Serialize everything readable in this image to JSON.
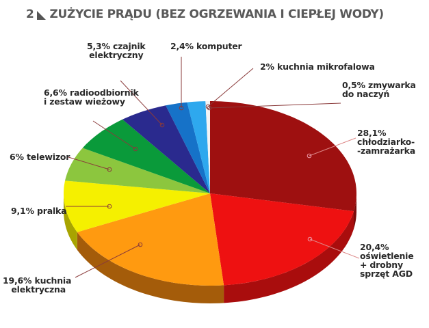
{
  "header": {
    "figure_number": "2",
    "title": "ZUŻYCIE PRĄDU (BEZ OGRZEWANIA I CIEPŁEJ WODY)"
  },
  "chart_data": {
    "type": "pie",
    "style": "3d",
    "title": "ZUŻYCIE PRĄDU (BEZ OGRZEWANIA I CIEPŁEJ WODY)",
    "unit": "%",
    "start_angle": "12 o'clock, clockwise",
    "categories": [
      "chłodziarko-zamrażarka",
      "oświetlenie + drobny sprzęt AGD",
      "kuchnia elektryczna",
      "pralka",
      "telewizor",
      "radioodbiornik i zestaw wieżowy",
      "czajnik elektryczny",
      "komputer",
      "kuchnia mikrofalowa",
      "zmywarka do naczyń"
    ],
    "values": [
      28.1,
      20.4,
      19.6,
      9.1,
      6.0,
      6.6,
      5.3,
      2.4,
      2.0,
      0.5
    ],
    "colors": [
      "#9e1010",
      "#ee1111",
      "#ff9a10",
      "#f5f000",
      "#8cc63e",
      "#0a9a3a",
      "#2a2a8e",
      "#1672c8",
      "#2ea8ee",
      "#f4f4f4"
    ],
    "side_colors": [
      "#7a0c0c",
      "#a90d0d",
      "#a45c0a",
      "#a8a400",
      "#5c8a22",
      "#066626",
      "#1a1a5e",
      "#0e4c88",
      "#1a74a8",
      "#cccccc"
    ],
    "legend": "none (leader-line labels)"
  },
  "labels": [
    {
      "pct": "28,1%",
      "line1": "chłodziarko-",
      "line2": "-zamrażarka"
    },
    {
      "pct": "20,4%",
      "line1": "oświetlenie",
      "line2": "+ drobny",
      "line3": "sprzęt AGD"
    },
    {
      "pct": "19,6% kuchnia",
      "line1": "elektryczna"
    },
    {
      "pct": "9,1% pralka"
    },
    {
      "pct": "6% telewizor"
    },
    {
      "pct": "6,6% radioodbiornik",
      "line1": "i zestaw wieżowy"
    },
    {
      "pct": "5,3% czajnik",
      "line1": "elektryczny"
    },
    {
      "pct": "2,4% komputer"
    },
    {
      "pct": "2% kuchnia mikrofalowa"
    },
    {
      "pct": "0,5% zmywarka",
      "line1": "do naczyń"
    }
  ]
}
